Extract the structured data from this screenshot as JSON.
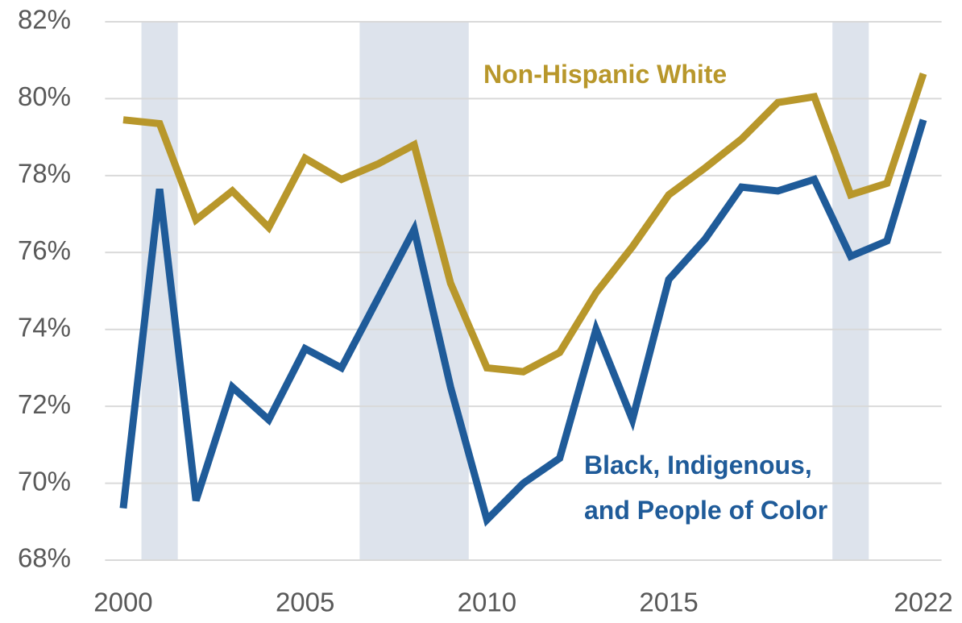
{
  "chart_data": {
    "type": "line",
    "x": [
      2000,
      2001,
      2002,
      2003,
      2004,
      2005,
      2006,
      2007,
      2008,
      2009,
      2010,
      2011,
      2012,
      2013,
      2014,
      2015,
      2016,
      2017,
      2018,
      2019,
      2020,
      2021,
      2022
    ],
    "series": [
      {
        "name": "Non-Hispanic White",
        "color": "#b8972b",
        "values": [
          79.45,
          79.35,
          76.85,
          77.6,
          76.65,
          78.45,
          77.9,
          78.3,
          78.8,
          75.2,
          73.0,
          72.9,
          73.4,
          74.95,
          76.15,
          77.5,
          78.2,
          78.95,
          79.9,
          80.05,
          77.5,
          77.8,
          80.65
        ]
      },
      {
        "name": "Black, Indigenous,\nand People of Color",
        "color": "#1f5b99",
        "values": [
          69.35,
          77.65,
          69.55,
          72.5,
          71.65,
          73.5,
          73.0,
          74.8,
          76.6,
          72.5,
          69.05,
          70.0,
          70.65,
          74.0,
          71.65,
          75.3,
          76.35,
          77.7,
          77.6,
          77.9,
          75.9,
          76.3,
          79.45
        ]
      }
    ],
    "shaded_ranges": [
      [
        2000.5,
        2001.5
      ],
      [
        2006.5,
        2009.5
      ],
      [
        2019.5,
        2020.5
      ]
    ],
    "shade_color": "#dde3ec",
    "xlim": [
      1999.5,
      2022.5
    ],
    "xticks": [
      2000,
      2005,
      2010,
      2015,
      2022
    ],
    "ylim": [
      68,
      82
    ],
    "yticks": [
      {
        "value": 68,
        "label": "68%"
      },
      {
        "value": 70,
        "label": "70%"
      },
      {
        "value": 72,
        "label": "72%"
      },
      {
        "value": 74,
        "label": "74%"
      },
      {
        "value": 76,
        "label": "76%"
      },
      {
        "value": 78,
        "label": "78%"
      },
      {
        "value": 80,
        "label": "80%"
      },
      {
        "value": 82,
        "label": "82%"
      }
    ],
    "grid": true
  }
}
